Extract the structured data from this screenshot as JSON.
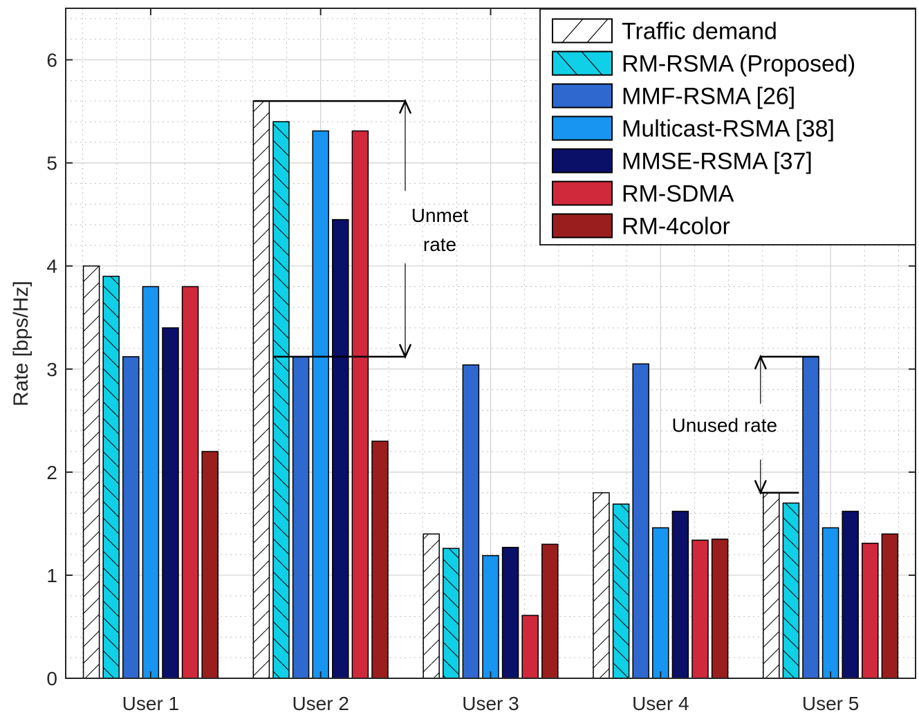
{
  "chart_data": {
    "type": "bar",
    "title": "",
    "xlabel": "",
    "ylabel": "Rate [bps/Hz]",
    "ylim": [
      0,
      6.5
    ],
    "yticks": [
      0,
      1,
      2,
      3,
      4,
      5,
      6
    ],
    "grid": true,
    "legend_position": "top-right",
    "categories": [
      "User 1",
      "User 2",
      "User 3",
      "User 4",
      "User 5"
    ],
    "series": [
      {
        "name": "Traffic demand",
        "color": "#ffffff",
        "pattern": "hatch-forward",
        "values": [
          4.0,
          5.6,
          1.4,
          1.8,
          1.8
        ]
      },
      {
        "name": "RM-RSMA (Proposed)",
        "color": "#0fd0e6",
        "pattern": "hatch-back",
        "values": [
          3.9,
          5.4,
          1.26,
          1.69,
          1.7
        ]
      },
      {
        "name": "MMF-RSMA [26]",
        "color": "#2f69cf",
        "pattern": "none",
        "values": [
          3.12,
          3.12,
          3.04,
          3.05,
          3.12
        ]
      },
      {
        "name": "Multicast-RSMA [38]",
        "color": "#1795f0",
        "pattern": "none",
        "values": [
          3.8,
          5.31,
          1.19,
          1.46,
          1.46
        ]
      },
      {
        "name": "MMSE-RSMA [37]",
        "color": "#0a0f68",
        "pattern": "none",
        "values": [
          3.4,
          4.45,
          1.27,
          1.62,
          1.62
        ]
      },
      {
        "name": "RM-SDMA",
        "color": "#d0293b",
        "pattern": "none",
        "values": [
          3.8,
          5.31,
          0.61,
          1.34,
          1.31
        ]
      },
      {
        "name": "RM-4color",
        "color": "#9a1e1e",
        "pattern": "none",
        "values": [
          2.2,
          2.3,
          1.3,
          1.35,
          1.4
        ]
      }
    ],
    "annotations": [
      {
        "text_lines": [
          "Unmet",
          "rate"
        ],
        "category": "User 2",
        "from_value": 5.6,
        "to_value": 3.12
      },
      {
        "text_lines": [
          "Unused rate"
        ],
        "category": "User 5",
        "from_value": 3.12,
        "to_value": 1.8
      }
    ]
  }
}
